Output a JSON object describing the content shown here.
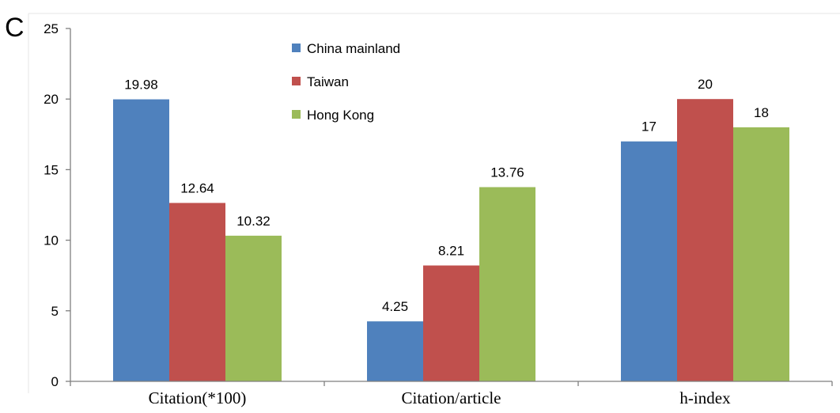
{
  "panel_label": "C",
  "chart_data": {
    "type": "bar",
    "categories": [
      "Citation(*100)",
      "Citation/article",
      "h-index"
    ],
    "series": [
      {
        "name": "China mainland",
        "color": "#4f81bd",
        "values": [
          19.98,
          4.25,
          17
        ]
      },
      {
        "name": "Taiwan",
        "color": "#c0504d",
        "values": [
          12.64,
          8.21,
          20
        ]
      },
      {
        "name": "Hong Kong",
        "color": "#9bbb59",
        "values": [
          10.32,
          13.76,
          18
        ]
      }
    ],
    "data_labels": [
      [
        "19.98",
        "4.25",
        "17"
      ],
      [
        "12.64",
        "8.21",
        "20"
      ],
      [
        "10.32",
        "13.76",
        "18"
      ]
    ],
    "yticks": [
      "0",
      "5",
      "10",
      "15",
      "20",
      "25"
    ],
    "ylim": [
      0,
      25
    ],
    "grid": false,
    "legend_position": "top-left"
  }
}
